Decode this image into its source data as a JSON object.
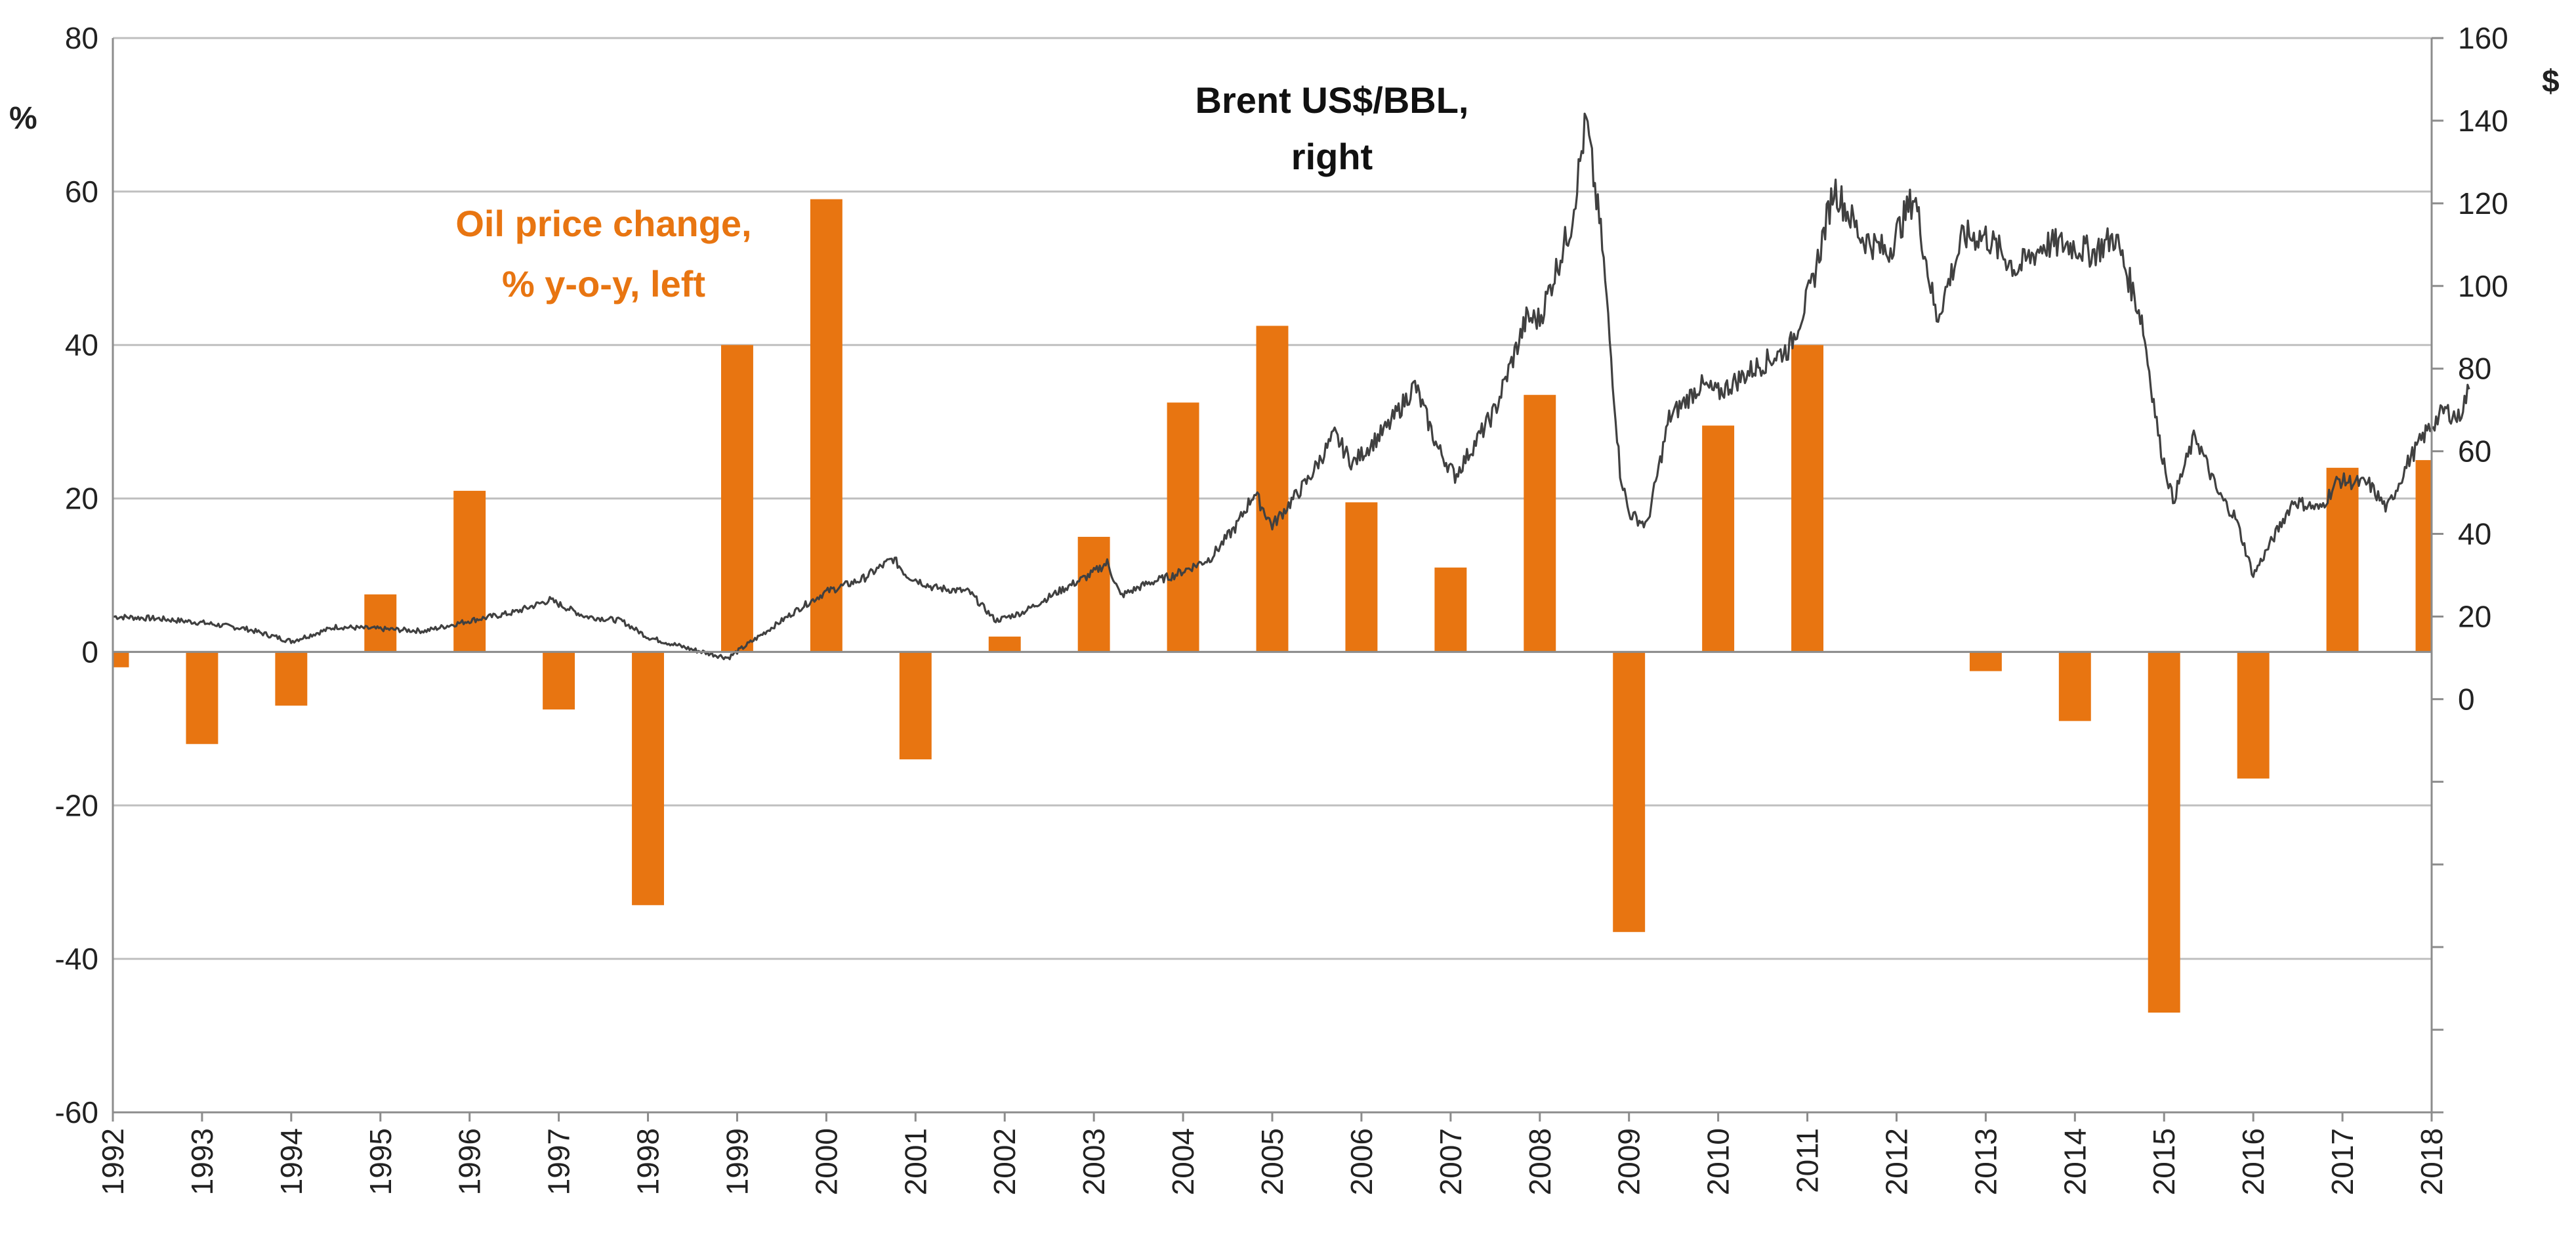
{
  "chart_data": {
    "type": "bar+line",
    "title": "",
    "categories": [
      "1992",
      "1993",
      "1994",
      "1995",
      "1996",
      "1997",
      "1998",
      "1999",
      "2000",
      "2001",
      "2002",
      "2003",
      "2004",
      "2005",
      "2006",
      "2007",
      "2008",
      "2009",
      "2010",
      "2011",
      "2012",
      "2013",
      "2014",
      "2015",
      "2016",
      "2017",
      "2018"
    ],
    "left_axis": {
      "unit_label": "%",
      "ylim": [
        -60,
        80
      ],
      "ticks": [
        "80",
        "60",
        "40",
        "20",
        "0",
        "-20",
        "-40",
        "-60"
      ]
    },
    "right_axis": {
      "unit_label": "$",
      "ylim": [
        -100,
        160
      ],
      "ticks": [
        "160",
        "140",
        "120",
        "100",
        "80",
        "60",
        "40",
        "20",
        "0"
      ]
    },
    "grid": true,
    "series": [
      {
        "name": "Oil price change, % y-o-y, left",
        "type": "bar",
        "axis": "left",
        "color": "#e87511",
        "values": [
          -2,
          -12,
          -7,
          7.5,
          21,
          -7.5,
          -33,
          40,
          59,
          -14,
          2,
          15,
          32.5,
          42.5,
          19.5,
          11,
          33.5,
          -36.5,
          29.5,
          40,
          null,
          -2.5,
          -9,
          -47,
          -16.5,
          24,
          25
        ]
      },
      {
        "name": "Brent US$/BBL, right",
        "type": "line",
        "axis": "right",
        "color": "#404040",
        "points": [
          [
            1992.0,
            20
          ],
          [
            1992.5,
            19.5
          ],
          [
            1993.0,
            18.5
          ],
          [
            1993.5,
            17
          ],
          [
            1994.0,
            14
          ],
          [
            1994.5,
            17.5
          ],
          [
            1995.0,
            17
          ],
          [
            1995.5,
            16.5
          ],
          [
            1996.0,
            19
          ],
          [
            1996.5,
            21
          ],
          [
            1996.9,
            24
          ],
          [
            1997.3,
            20
          ],
          [
            1997.7,
            19
          ],
          [
            1998.0,
            15
          ],
          [
            1998.5,
            12
          ],
          [
            1998.9,
            10
          ],
          [
            1999.3,
            16
          ],
          [
            1999.7,
            22
          ],
          [
            2000.0,
            26
          ],
          [
            2000.4,
            29
          ],
          [
            2000.75,
            34
          ],
          [
            2000.9,
            30
          ],
          [
            2001.2,
            27
          ],
          [
            2001.6,
            26
          ],
          [
            2001.9,
            19
          ],
          [
            2002.2,
            21
          ],
          [
            2002.6,
            26
          ],
          [
            2002.95,
            30
          ],
          [
            2003.15,
            33
          ],
          [
            2003.3,
            25
          ],
          [
            2003.6,
            28
          ],
          [
            2003.9,
            30
          ],
          [
            2004.3,
            34
          ],
          [
            2004.6,
            42
          ],
          [
            2004.8,
            50
          ],
          [
            2005.0,
            42
          ],
          [
            2005.4,
            53
          ],
          [
            2005.7,
            64
          ],
          [
            2005.9,
            57
          ],
          [
            2006.3,
            66
          ],
          [
            2006.6,
            76
          ],
          [
            2006.85,
            61
          ],
          [
            2007.05,
            54
          ],
          [
            2007.5,
            70
          ],
          [
            2007.85,
            92
          ],
          [
            2008.0,
            92
          ],
          [
            2008.35,
            115
          ],
          [
            2008.52,
            140
          ],
          [
            2008.7,
            110
          ],
          [
            2008.9,
            55
          ],
          [
            2009.0,
            45
          ],
          [
            2009.2,
            42
          ],
          [
            2009.45,
            68
          ],
          [
            2009.8,
            76
          ],
          [
            2010.0,
            74
          ],
          [
            2010.4,
            80
          ],
          [
            2010.8,
            85
          ],
          [
            2011.05,
            100
          ],
          [
            2011.3,
            124
          ],
          [
            2011.6,
            112
          ],
          [
            2011.9,
            108
          ],
          [
            2012.2,
            122
          ],
          [
            2012.45,
            92
          ],
          [
            2012.75,
            112
          ],
          [
            2013.0,
            112
          ],
          [
            2013.35,
            104
          ],
          [
            2013.65,
            110
          ],
          [
            2013.95,
            110
          ],
          [
            2014.2,
            108
          ],
          [
            2014.45,
            112
          ],
          [
            2014.75,
            92
          ],
          [
            2014.95,
            62
          ],
          [
            2015.1,
            48
          ],
          [
            2015.35,
            64
          ],
          [
            2015.6,
            50
          ],
          [
            2015.8,
            44
          ],
          [
            2016.0,
            30
          ],
          [
            2016.2,
            38
          ],
          [
            2016.45,
            48
          ],
          [
            2016.75,
            46
          ],
          [
            2016.95,
            53
          ],
          [
            2017.3,
            52
          ],
          [
            2017.5,
            46
          ],
          [
            2017.75,
            58
          ],
          [
            2017.95,
            65
          ],
          [
            2018.15,
            70
          ],
          [
            2018.3,
            68
          ],
          [
            2018.42,
            75
          ]
        ]
      }
    ],
    "annotations": [
      {
        "lines": [
          "Oil price change,",
          "% y-o-y, left"
        ],
        "color": "#e87511"
      },
      {
        "lines": [
          "Brent US$/BBL,",
          "right"
        ],
        "color": "#111111"
      }
    ]
  }
}
